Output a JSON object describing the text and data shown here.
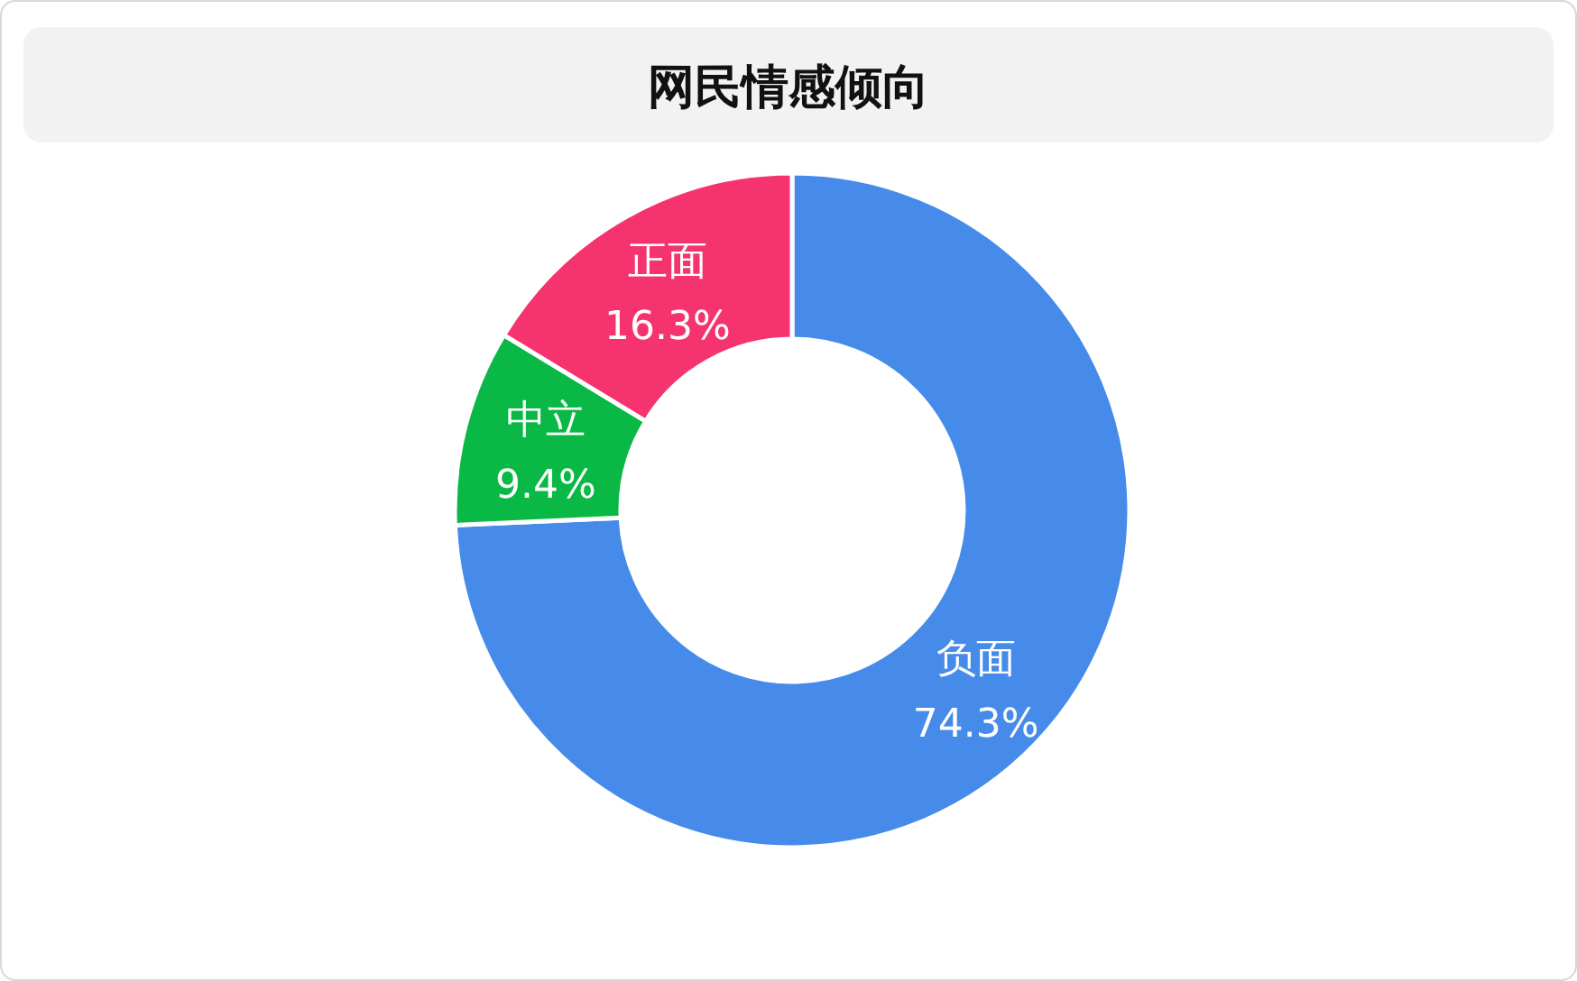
{
  "chart_data": {
    "type": "donut",
    "title": "网民情感倾向",
    "categories": [
      "负面",
      "中立",
      "正面"
    ],
    "values": [
      74.3,
      9.4,
      16.3
    ],
    "colors": [
      "#468bea",
      "#0ab845",
      "#f5346f"
    ],
    "value_labels": [
      "74.3%",
      "9.4%",
      "16.3%"
    ]
  }
}
